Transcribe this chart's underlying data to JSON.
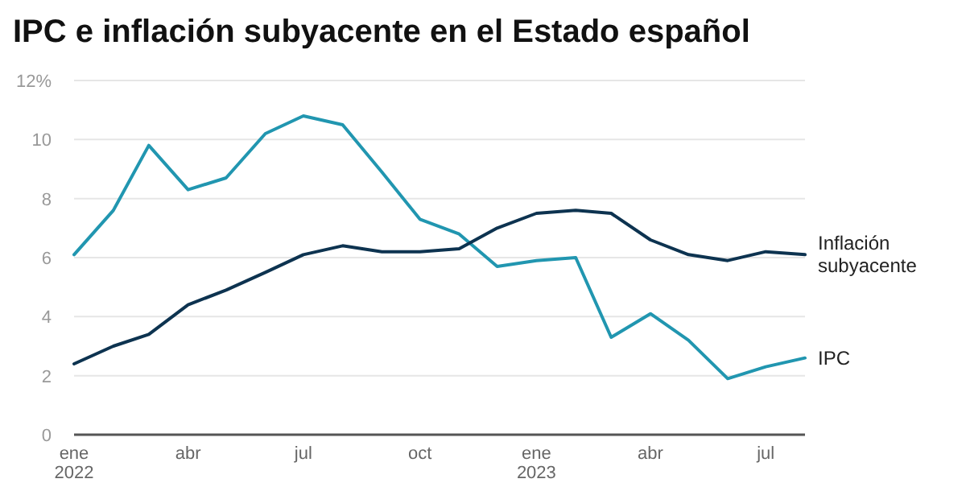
{
  "chart_data": {
    "type": "line",
    "title": "IPC e inflación subyacente en el Estado español",
    "x": [
      "2022-01",
      "2022-02",
      "2022-03",
      "2022-04",
      "2022-05",
      "2022-06",
      "2022-07",
      "2022-08",
      "2022-09",
      "2022-10",
      "2022-11",
      "2022-12",
      "2023-01",
      "2023-02",
      "2023-03",
      "2023-04",
      "2023-05",
      "2023-06",
      "2023-07",
      "2023-08"
    ],
    "series": [
      {
        "name": "IPC",
        "color": "#2196b0",
        "values": [
          6.1,
          7.6,
          9.8,
          8.3,
          8.7,
          10.2,
          10.8,
          10.5,
          8.9,
          7.3,
          6.8,
          5.7,
          5.9,
          6.0,
          3.3,
          4.1,
          3.2,
          1.9,
          2.3,
          2.6
        ]
      },
      {
        "name": "Inflación subyacente",
        "color": "#0d3350",
        "values": [
          2.4,
          3.0,
          3.4,
          4.4,
          4.9,
          5.5,
          6.1,
          6.4,
          6.2,
          6.2,
          6.3,
          7.0,
          7.5,
          7.6,
          7.5,
          6.6,
          6.1,
          5.9,
          6.2,
          6.1
        ]
      }
    ],
    "xlim": [
      "2022-01",
      "2023-08"
    ],
    "xticks": [
      {
        "value": "2022-01",
        "label": "ene\n2022"
      },
      {
        "value": "2022-04",
        "label": "abr"
      },
      {
        "value": "2022-07",
        "label": "jul"
      },
      {
        "value": "2022-10",
        "label": "oct"
      },
      {
        "value": "2023-01",
        "label": "ene\n2023"
      },
      {
        "value": "2023-04",
        "label": "abr"
      },
      {
        "value": "2023-07",
        "label": "jul"
      }
    ],
    "ylim": [
      0,
      12
    ],
    "yticks": [
      0,
      2,
      4,
      6,
      8,
      10,
      {
        "value": 12,
        "label": "12%"
      }
    ],
    "grid": "y",
    "marker": "none",
    "line_style": "solid"
  }
}
